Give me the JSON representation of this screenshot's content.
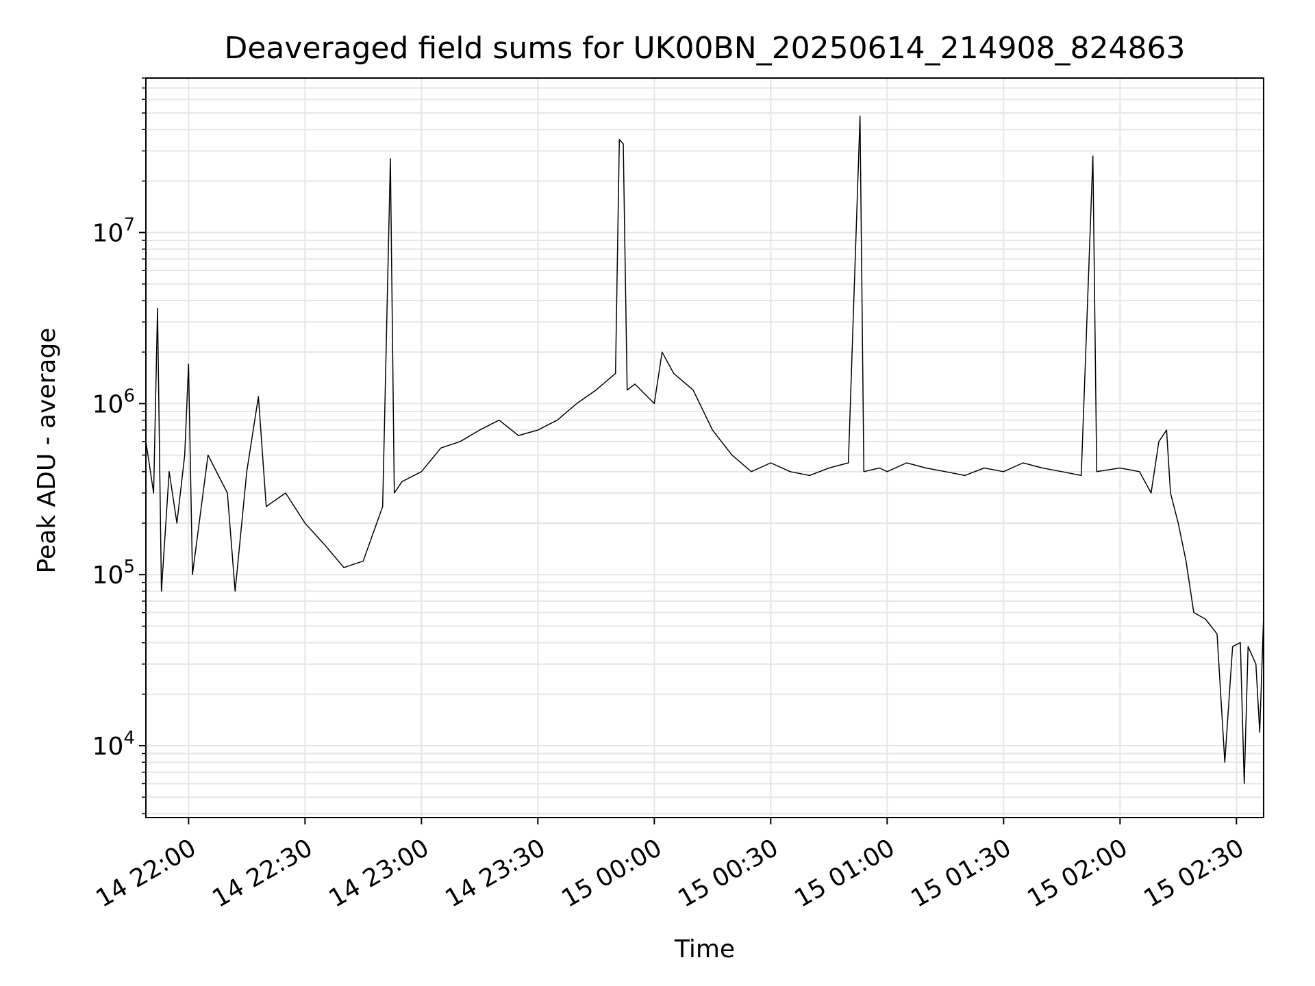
{
  "chart_data": {
    "type": "line",
    "title": "Deaveraged field sums for UK00BN_20250614_214908_824863",
    "xlabel": "Time",
    "ylabel": "Peak ADU - average",
    "yscale": "log",
    "grid": true,
    "legend": "none",
    "line_color": "#000000",
    "grid_color": "#e6e6e6",
    "xlim": [
      "2025-06-14 21:49",
      "2025-06-15 02:37"
    ],
    "ylim": [
      3800,
      80000000
    ],
    "x_ticks": [
      {
        "time": "2025-06-14 22:00",
        "label": "14 22:00"
      },
      {
        "time": "2025-06-14 22:30",
        "label": "14 22:30"
      },
      {
        "time": "2025-06-14 23:00",
        "label": "14 23:00"
      },
      {
        "time": "2025-06-14 23:30",
        "label": "14 23:30"
      },
      {
        "time": "2025-06-15 00:00",
        "label": "15 00:00"
      },
      {
        "time": "2025-06-15 00:30",
        "label": "15 00:30"
      },
      {
        "time": "2025-06-15 01:00",
        "label": "15 01:00"
      },
      {
        "time": "2025-06-15 01:30",
        "label": "15 01:30"
      },
      {
        "time": "2025-06-15 02:00",
        "label": "15 02:00"
      },
      {
        "time": "2025-06-15 02:30",
        "label": "15 02:30"
      }
    ],
    "y_ticks": [
      {
        "value": 10000,
        "base": "10",
        "exp": "4"
      },
      {
        "value": 100000,
        "base": "10",
        "exp": "5"
      },
      {
        "value": 1000000,
        "base": "10",
        "exp": "6"
      },
      {
        "value": 10000000,
        "base": "10",
        "exp": "7"
      }
    ],
    "series": [
      {
        "values": [
          [
            "2025-06-14 21:49",
            600000
          ],
          [
            "2025-06-14 21:51",
            300000
          ],
          [
            "2025-06-14 21:52",
            3600000
          ],
          [
            "2025-06-14 21:53",
            80000
          ],
          [
            "2025-06-14 21:55",
            400000
          ],
          [
            "2025-06-14 21:57",
            200000
          ],
          [
            "2025-06-14 21:59",
            500000
          ],
          [
            "2025-06-14 22:00",
            1700000
          ],
          [
            "2025-06-14 22:01",
            100000
          ],
          [
            "2025-06-14 22:05",
            500000
          ],
          [
            "2025-06-14 22:10",
            300000
          ],
          [
            "2025-06-14 22:12",
            80000
          ],
          [
            "2025-06-14 22:15",
            400000
          ],
          [
            "2025-06-14 22:18",
            1100000
          ],
          [
            "2025-06-14 22:20",
            250000
          ],
          [
            "2025-06-14 22:25",
            300000
          ],
          [
            "2025-06-14 22:30",
            200000
          ],
          [
            "2025-06-14 22:35",
            150000
          ],
          [
            "2025-06-14 22:40",
            110000
          ],
          [
            "2025-06-14 22:45",
            120000
          ],
          [
            "2025-06-14 22:50",
            250000
          ],
          [
            "2025-06-14 22:52",
            27000000
          ],
          [
            "2025-06-14 22:53",
            300000
          ],
          [
            "2025-06-14 22:55",
            350000
          ],
          [
            "2025-06-14 23:00",
            400000
          ],
          [
            "2025-06-14 23:05",
            550000
          ],
          [
            "2025-06-14 23:10",
            600000
          ],
          [
            "2025-06-14 23:15",
            700000
          ],
          [
            "2025-06-14 23:20",
            800000
          ],
          [
            "2025-06-14 23:25",
            650000
          ],
          [
            "2025-06-14 23:30",
            700000
          ],
          [
            "2025-06-14 23:35",
            800000
          ],
          [
            "2025-06-14 23:40",
            1000000
          ],
          [
            "2025-06-14 23:45",
            1200000
          ],
          [
            "2025-06-14 23:50",
            1500000
          ],
          [
            "2025-06-14 23:51",
            35000000
          ],
          [
            "2025-06-14 23:52",
            33000000
          ],
          [
            "2025-06-14 23:53",
            1200000
          ],
          [
            "2025-06-14 23:55",
            1300000
          ],
          [
            "2025-06-15 00:00",
            1000000
          ],
          [
            "2025-06-15 00:02",
            2000000
          ],
          [
            "2025-06-15 00:05",
            1500000
          ],
          [
            "2025-06-15 00:10",
            1200000
          ],
          [
            "2025-06-15 00:15",
            700000
          ],
          [
            "2025-06-15 00:20",
            500000
          ],
          [
            "2025-06-15 00:25",
            400000
          ],
          [
            "2025-06-15 00:30",
            450000
          ],
          [
            "2025-06-15 00:35",
            400000
          ],
          [
            "2025-06-15 00:40",
            380000
          ],
          [
            "2025-06-15 00:45",
            420000
          ],
          [
            "2025-06-15 00:50",
            450000
          ],
          [
            "2025-06-15 00:53",
            48000000
          ],
          [
            "2025-06-15 00:54",
            400000
          ],
          [
            "2025-06-15 00:58",
            420000
          ],
          [
            "2025-06-15 01:00",
            400000
          ],
          [
            "2025-06-15 01:05",
            450000
          ],
          [
            "2025-06-15 01:10",
            420000
          ],
          [
            "2025-06-15 01:15",
            400000
          ],
          [
            "2025-06-15 01:20",
            380000
          ],
          [
            "2025-06-15 01:25",
            420000
          ],
          [
            "2025-06-15 01:30",
            400000
          ],
          [
            "2025-06-15 01:35",
            450000
          ],
          [
            "2025-06-15 01:40",
            420000
          ],
          [
            "2025-06-15 01:45",
            400000
          ],
          [
            "2025-06-15 01:50",
            380000
          ],
          [
            "2025-06-15 01:53",
            28000000
          ],
          [
            "2025-06-15 01:54",
            400000
          ],
          [
            "2025-06-15 02:00",
            420000
          ],
          [
            "2025-06-15 02:05",
            400000
          ],
          [
            "2025-06-15 02:08",
            300000
          ],
          [
            "2025-06-15 02:10",
            600000
          ],
          [
            "2025-06-15 02:12",
            700000
          ],
          [
            "2025-06-15 02:13",
            300000
          ],
          [
            "2025-06-15 02:15",
            200000
          ],
          [
            "2025-06-15 02:17",
            120000
          ],
          [
            "2025-06-15 02:19",
            60000
          ],
          [
            "2025-06-15 02:22",
            55000
          ],
          [
            "2025-06-15 02:25",
            45000
          ],
          [
            "2025-06-15 02:27",
            8000
          ],
          [
            "2025-06-15 02:29",
            38000
          ],
          [
            "2025-06-15 02:31",
            40000
          ],
          [
            "2025-06-15 02:32",
            6000
          ],
          [
            "2025-06-15 02:33",
            38000
          ],
          [
            "2025-06-15 02:35",
            30000
          ],
          [
            "2025-06-15 02:36",
            12000
          ],
          [
            "2025-06-15 02:37",
            58000
          ]
        ]
      }
    ]
  }
}
